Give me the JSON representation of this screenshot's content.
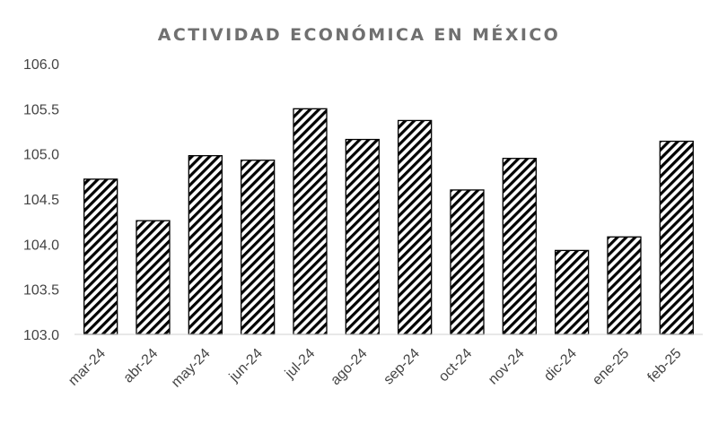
{
  "chart_data": {
    "type": "bar",
    "title": "ACTIVIDAD ECONÓMICA EN MÉXICO",
    "xlabel": "",
    "ylabel": "",
    "categories": [
      "mar-24",
      "abr-24",
      "may-24",
      "jun-24",
      "jul-24",
      "ago-24",
      "sep-24",
      "oct-24",
      "nov-24",
      "dic-24",
      "ene-25",
      "feb-25"
    ],
    "values": [
      104.72,
      104.26,
      104.98,
      104.93,
      105.5,
      105.16,
      105.37,
      104.6,
      104.95,
      103.93,
      104.08,
      105.14
    ],
    "ylim": [
      103.0,
      106.0
    ],
    "yticks": [
      "103.0",
      "103.5",
      "104.0",
      "104.5",
      "105.0",
      "105.5",
      "106.0"
    ],
    "grid": false,
    "legend": "none",
    "bar_fill": "diagonal-hatch",
    "colors": {
      "bar_stroke": "#000000",
      "hatch": "#000000",
      "title": "#707070",
      "axis_text": "#444444"
    }
  }
}
